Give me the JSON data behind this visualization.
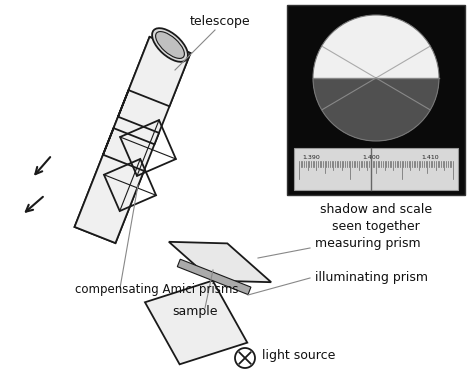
{
  "bg_color": "#ffffff",
  "line_color": "#1a1a1a",
  "telescope_label": "telescope",
  "amici_label": "compensating Amici prisms",
  "sample_label": "sample",
  "measuring_label": "measuring prism",
  "illuminating_label": "illuminating prism",
  "light_label": "light source",
  "shadow_label": "shadow and scale\nseen together",
  "scale_ticks": [
    "1.390",
    "1.400",
    "1.410"
  ],
  "font_size": 9,
  "tube_fill": "#f0f0f0",
  "prism_fill": "#f5f5f5",
  "viewer_black": "#0a0a0a",
  "viewer_white": "#ffffff",
  "viewer_dark": "#484848",
  "viewer_gray": "#b0b0b0",
  "scale_fill": "#d8d8d8",
  "leader_color": "#888888"
}
